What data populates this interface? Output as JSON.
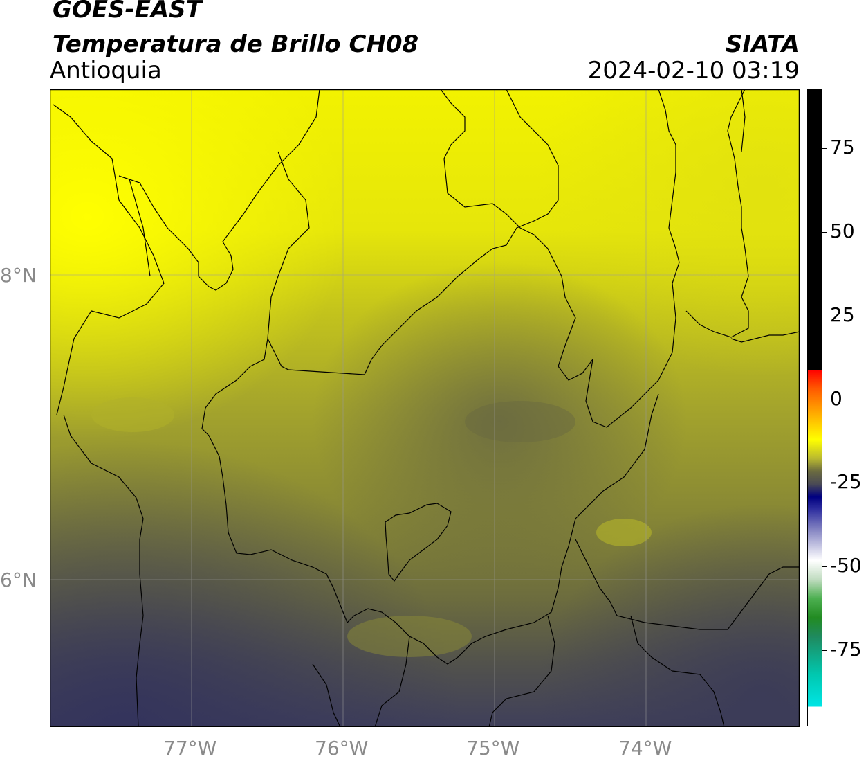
{
  "header": {
    "satellite": "GOES-EAST",
    "product": "Temperatura de Brillo CH08",
    "region": "Antioquia",
    "source": "SIATA",
    "datetime": "2024-02-10 03:19"
  },
  "map": {
    "lon_labels": [
      "77°W",
      "76°W",
      "75°W",
      "74°W"
    ],
    "lat_labels": [
      "8°N",
      "6°N"
    ],
    "colors": {
      "warm_yellow": "#f2f200",
      "mid_olive": "#8a8a34",
      "cool_slate": "#3c3c60",
      "border": "#000000",
      "grid": "#9a9a9a"
    }
  },
  "colorbar": {
    "ticks": [
      "75",
      "50",
      "25",
      "0",
      "-25",
      "-50",
      "-75"
    ],
    "colors": {
      "black": "#000000",
      "red": "#ff0000",
      "orange": "#ff9900",
      "yellow": "#ffff00",
      "olive": "#6a6a40",
      "navy": "#000080",
      "white": "#ffffff",
      "green": "#228b22",
      "cyan": "#00e5e5"
    }
  }
}
